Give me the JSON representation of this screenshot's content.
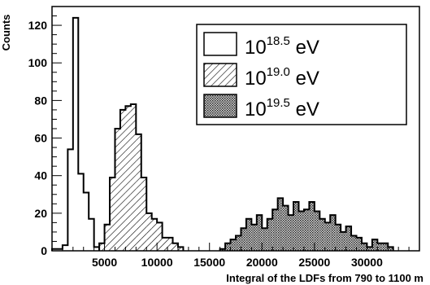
{
  "chart_data": {
    "type": "histogram",
    "ylabel": "Counts",
    "xlabel": "Integral of the LDFs from 790 to 1100 m",
    "xlim": [
      0,
      35000
    ],
    "ylim": [
      0,
      130
    ],
    "x_ticks": [
      5000,
      10000,
      15000,
      20000,
      25000,
      30000
    ],
    "x_tick_labels": [
      "5000",
      "10000",
      "15000",
      "20000",
      "25000",
      "30000"
    ],
    "y_ticks": [
      0,
      20,
      40,
      60,
      80,
      100,
      120
    ],
    "y_tick_labels": [
      "0",
      "20",
      "40",
      "60",
      "80",
      "100",
      "120"
    ],
    "legend_placement": "top-right",
    "series": [
      {
        "name_base": "10",
        "name_exp": "18.5",
        "name_unit": " eV",
        "fill": "hollow",
        "bins": [
          {
            "lo": 0,
            "hi": 500,
            "value": 1
          },
          {
            "lo": 500,
            "hi": 1000,
            "value": 1
          },
          {
            "lo": 1000,
            "hi": 1500,
            "value": 3
          },
          {
            "lo": 1500,
            "hi": 2000,
            "value": 54
          },
          {
            "lo": 2000,
            "hi": 2500,
            "value": 124
          },
          {
            "lo": 2500,
            "hi": 3000,
            "value": 41
          },
          {
            "lo": 3000,
            "hi": 3500,
            "value": 31
          },
          {
            "lo": 3500,
            "hi": 4000,
            "value": 17
          },
          {
            "lo": 4000,
            "hi": 4500,
            "value": 2
          }
        ]
      },
      {
        "name_base": "10",
        "name_exp": "19.0",
        "name_unit": " eV",
        "fill": "diagonal-hatch",
        "bins": [
          {
            "lo": 4500,
            "hi": 5000,
            "value": 4
          },
          {
            "lo": 5000,
            "hi": 5500,
            "value": 14
          },
          {
            "lo": 5500,
            "hi": 6000,
            "value": 39
          },
          {
            "lo": 6000,
            "hi": 6500,
            "value": 65
          },
          {
            "lo": 6500,
            "hi": 7000,
            "value": 75
          },
          {
            "lo": 7000,
            "hi": 7500,
            "value": 77
          },
          {
            "lo": 7500,
            "hi": 8000,
            "value": 78
          },
          {
            "lo": 8000,
            "hi": 8500,
            "value": 62
          },
          {
            "lo": 8500,
            "hi": 9000,
            "value": 39
          },
          {
            "lo": 9000,
            "hi": 9500,
            "value": 20
          },
          {
            "lo": 9500,
            "hi": 10000,
            "value": 17
          },
          {
            "lo": 10000,
            "hi": 10500,
            "value": 15
          },
          {
            "lo": 10500,
            "hi": 11000,
            "value": 7
          },
          {
            "lo": 11000,
            "hi": 11500,
            "value": 7
          },
          {
            "lo": 11500,
            "hi": 12000,
            "value": 4
          },
          {
            "lo": 12000,
            "hi": 12500,
            "value": 2
          }
        ]
      },
      {
        "name_base": "10",
        "name_exp": "19.5",
        "name_unit": " eV",
        "fill": "dotted",
        "bins": [
          {
            "lo": 16000,
            "hi": 16500,
            "value": 1
          },
          {
            "lo": 16500,
            "hi": 17000,
            "value": 4
          },
          {
            "lo": 17000,
            "hi": 17500,
            "value": 6
          },
          {
            "lo": 17500,
            "hi": 18000,
            "value": 8
          },
          {
            "lo": 18000,
            "hi": 18500,
            "value": 12
          },
          {
            "lo": 18500,
            "hi": 19000,
            "value": 17
          },
          {
            "lo": 19000,
            "hi": 19500,
            "value": 14
          },
          {
            "lo": 19500,
            "hi": 20000,
            "value": 19
          },
          {
            "lo": 20000,
            "hi": 20500,
            "value": 12
          },
          {
            "lo": 20500,
            "hi": 21000,
            "value": 17
          },
          {
            "lo": 21000,
            "hi": 21500,
            "value": 22
          },
          {
            "lo": 21500,
            "hi": 22000,
            "value": 28
          },
          {
            "lo": 22000,
            "hi": 22500,
            "value": 24
          },
          {
            "lo": 22500,
            "hi": 23000,
            "value": 19
          },
          {
            "lo": 23000,
            "hi": 23500,
            "value": 26
          },
          {
            "lo": 23500,
            "hi": 24000,
            "value": 21
          },
          {
            "lo": 24000,
            "hi": 24500,
            "value": 22
          },
          {
            "lo": 24500,
            "hi": 25000,
            "value": 26
          },
          {
            "lo": 25000,
            "hi": 25500,
            "value": 21
          },
          {
            "lo": 25500,
            "hi": 26000,
            "value": 17
          },
          {
            "lo": 26000,
            "hi": 26500,
            "value": 15
          },
          {
            "lo": 26500,
            "hi": 27000,
            "value": 19
          },
          {
            "lo": 27000,
            "hi": 27500,
            "value": 14
          },
          {
            "lo": 27500,
            "hi": 28000,
            "value": 10
          },
          {
            "lo": 28000,
            "hi": 28500,
            "value": 13
          },
          {
            "lo": 28500,
            "hi": 29000,
            "value": 8
          },
          {
            "lo": 29000,
            "hi": 29500,
            "value": 7
          },
          {
            "lo": 29500,
            "hi": 30000,
            "value": 4
          },
          {
            "lo": 30000,
            "hi": 30500,
            "value": 2
          },
          {
            "lo": 30500,
            "hi": 31000,
            "value": 6
          },
          {
            "lo": 31000,
            "hi": 31500,
            "value": 4
          },
          {
            "lo": 31500,
            "hi": 32000,
            "value": 4
          },
          {
            "lo": 32000,
            "hi": 32500,
            "value": 2
          }
        ]
      }
    ]
  }
}
